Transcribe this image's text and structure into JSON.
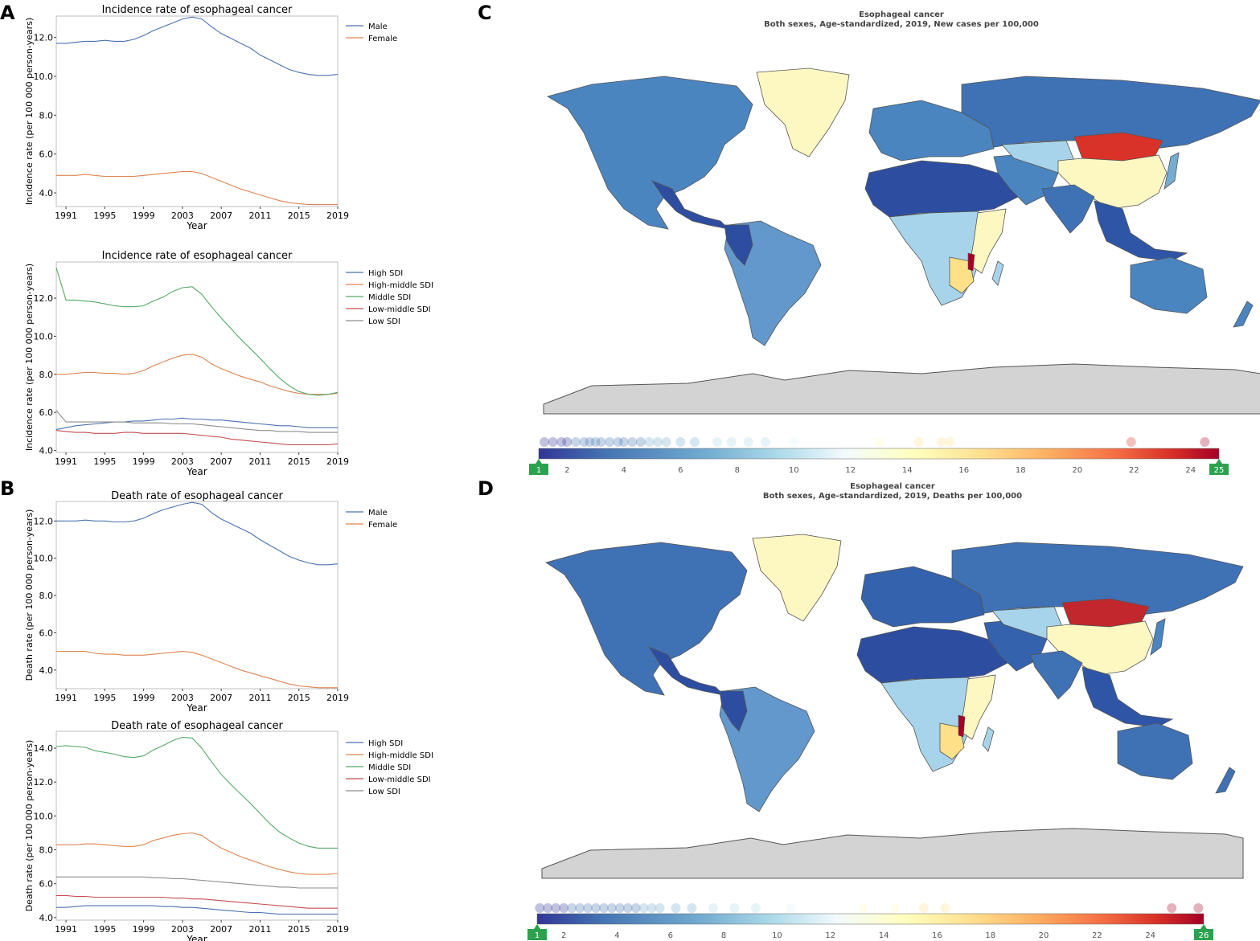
{
  "panels": {
    "A": "A",
    "B": "B",
    "C": "C",
    "D": "D"
  },
  "chart_data": [
    {
      "id": "A1",
      "type": "line",
      "title": "Incidence rate of esophageal cancer",
      "xlabel": "Year",
      "ylabel": "Incidence rate (per 100 000 person-years)",
      "xticks": [
        "1991",
        "1995",
        "1999",
        "2003",
        "2007",
        "2011",
        "2015",
        "2019"
      ],
      "yticks": [
        4.0,
        6.0,
        8.0,
        10.0,
        12.0
      ],
      "xlim": [
        1990,
        2019
      ],
      "ylim": [
        3.3,
        13.1
      ],
      "x": [
        1990,
        1991,
        1992,
        1993,
        1994,
        1995,
        1996,
        1997,
        1998,
        1999,
        2000,
        2001,
        2002,
        2003,
        2004,
        2005,
        2006,
        2007,
        2008,
        2009,
        2010,
        2011,
        2012,
        2013,
        2014,
        2015,
        2016,
        2017,
        2018,
        2019
      ],
      "series": [
        {
          "name": "Male",
          "color": "#4c72b0",
          "values": [
            11.7,
            11.7,
            11.75,
            11.8,
            11.8,
            11.85,
            11.8,
            11.8,
            11.9,
            12.1,
            12.35,
            12.55,
            12.75,
            12.95,
            13.05,
            12.95,
            12.55,
            12.2,
            11.95,
            11.7,
            11.45,
            11.1,
            10.85,
            10.6,
            10.35,
            10.2,
            10.1,
            10.05,
            10.05,
            10.1
          ]
        },
        {
          "name": "Female",
          "color": "#dd8452",
          "values": [
            4.9,
            4.9,
            4.9,
            4.95,
            4.9,
            4.85,
            4.85,
            4.85,
            4.85,
            4.9,
            4.95,
            5.0,
            5.05,
            5.1,
            5.1,
            5.0,
            4.8,
            4.6,
            4.4,
            4.2,
            4.05,
            3.9,
            3.75,
            3.6,
            3.5,
            3.45,
            3.4,
            3.4,
            3.4,
            3.4
          ]
        }
      ]
    },
    {
      "id": "A2",
      "type": "line",
      "title": "Incidence rate of esophageal cancer",
      "xlabel": "Year",
      "ylabel": "Incidence rate (per 100 000 person-years)",
      "xticks": [
        "1991",
        "1995",
        "1999",
        "2003",
        "2007",
        "2011",
        "2015",
        "2019"
      ],
      "yticks": [
        4.0,
        6.0,
        8.0,
        10.0,
        12.0
      ],
      "xlim": [
        1990,
        2019
      ],
      "ylim": [
        3.9,
        13.9
      ],
      "x": [
        1990,
        1991,
        1992,
        1993,
        1994,
        1995,
        1996,
        1997,
        1998,
        1999,
        2000,
        2001,
        2002,
        2003,
        2004,
        2005,
        2006,
        2007,
        2008,
        2009,
        2010,
        2011,
        2012,
        2013,
        2014,
        2015,
        2016,
        2017,
        2018,
        2019
      ],
      "series": [
        {
          "name": "High SDI",
          "color": "#4c72b0",
          "values": [
            5.1,
            5.2,
            5.3,
            5.35,
            5.4,
            5.45,
            5.5,
            5.5,
            5.55,
            5.55,
            5.6,
            5.65,
            5.65,
            5.7,
            5.65,
            5.65,
            5.6,
            5.6,
            5.55,
            5.5,
            5.45,
            5.4,
            5.35,
            5.3,
            5.3,
            5.25,
            5.2,
            5.2,
            5.2,
            5.2
          ]
        },
        {
          "name": "High-middle SDI",
          "color": "#dd8452",
          "values": [
            8.0,
            8.0,
            8.05,
            8.1,
            8.1,
            8.05,
            8.05,
            8.0,
            8.05,
            8.2,
            8.45,
            8.65,
            8.85,
            9.0,
            9.05,
            8.9,
            8.55,
            8.3,
            8.1,
            7.9,
            7.75,
            7.6,
            7.4,
            7.25,
            7.1,
            7.0,
            6.95,
            6.95,
            6.95,
            7.0
          ]
        },
        {
          "name": "Middle SDI",
          "color": "#55a868",
          "values": [
            13.6,
            11.9,
            11.9,
            11.85,
            11.8,
            11.7,
            11.6,
            11.55,
            11.55,
            11.6,
            11.85,
            12.05,
            12.35,
            12.55,
            12.6,
            12.2,
            11.55,
            10.95,
            10.4,
            9.85,
            9.35,
            8.85,
            8.3,
            7.8,
            7.4,
            7.1,
            6.95,
            6.9,
            6.95,
            7.05
          ]
        },
        {
          "name": "Low-middle SDI",
          "color": "#c44e52",
          "values": [
            5.05,
            5.0,
            4.95,
            4.95,
            4.9,
            4.9,
            4.9,
            4.95,
            4.95,
            4.9,
            4.9,
            4.9,
            4.9,
            4.9,
            4.85,
            4.8,
            4.75,
            4.7,
            4.6,
            4.55,
            4.5,
            4.45,
            4.4,
            4.35,
            4.3,
            4.3,
            4.3,
            4.3,
            4.3,
            4.35
          ]
        },
        {
          "name": "Low SDI",
          "color": "#8c8c8c",
          "values": [
            6.1,
            5.5,
            5.5,
            5.5,
            5.5,
            5.5,
            5.5,
            5.5,
            5.45,
            5.45,
            5.45,
            5.45,
            5.4,
            5.4,
            5.4,
            5.35,
            5.3,
            5.25,
            5.2,
            5.15,
            5.1,
            5.05,
            5.05,
            5.0,
            5.0,
            5.0,
            4.95,
            4.95,
            4.95,
            4.95
          ]
        }
      ]
    },
    {
      "id": "B1",
      "type": "line",
      "title": "Death rate of esophageal cancer",
      "xlabel": "Year",
      "ylabel": "Death rate (per 100 000 person-years)",
      "xticks": [
        "1991",
        "1995",
        "1999",
        "2003",
        "2007",
        "2011",
        "2015",
        "2019"
      ],
      "yticks": [
        4.0,
        6.0,
        8.0,
        10.0,
        12.0
      ],
      "xlim": [
        1990,
        2019
      ],
      "ylim": [
        3.0,
        13.05
      ],
      "x": [
        1990,
        1991,
        1992,
        1993,
        1994,
        1995,
        1996,
        1997,
        1998,
        1999,
        2000,
        2001,
        2002,
        2003,
        2004,
        2005,
        2006,
        2007,
        2008,
        2009,
        2010,
        2011,
        2012,
        2013,
        2014,
        2015,
        2016,
        2017,
        2018,
        2019
      ],
      "series": [
        {
          "name": "Male",
          "color": "#4c72b0",
          "values": [
            12.0,
            12.0,
            12.0,
            12.05,
            12.0,
            12.0,
            11.95,
            11.95,
            12.0,
            12.15,
            12.4,
            12.6,
            12.75,
            12.9,
            13.0,
            12.9,
            12.45,
            12.1,
            11.85,
            11.6,
            11.35,
            11.0,
            10.7,
            10.4,
            10.1,
            9.9,
            9.75,
            9.65,
            9.65,
            9.7
          ]
        },
        {
          "name": "Female",
          "color": "#dd8452",
          "values": [
            5.0,
            5.0,
            5.0,
            5.0,
            4.9,
            4.85,
            4.85,
            4.8,
            4.8,
            4.8,
            4.85,
            4.9,
            4.95,
            5.0,
            4.95,
            4.8,
            4.6,
            4.4,
            4.2,
            4.0,
            3.85,
            3.7,
            3.55,
            3.4,
            3.25,
            3.15,
            3.1,
            3.05,
            3.05,
            3.05
          ]
        }
      ]
    },
    {
      "id": "B2",
      "type": "line",
      "title": "Death rate of esophageal cancer",
      "xlabel": "Year",
      "ylabel": "Death rate (per 100 000 person-years)",
      "xticks": [
        "1991",
        "1995",
        "1999",
        "2003",
        "2007",
        "2011",
        "2015",
        "2019"
      ],
      "yticks": [
        4.0,
        6.0,
        8.0,
        10.0,
        12.0,
        14.0
      ],
      "xlim": [
        1990,
        2019
      ],
      "ylim": [
        3.85,
        15.0
      ],
      "x": [
        1990,
        1991,
        1992,
        1993,
        1994,
        1995,
        1996,
        1997,
        1998,
        1999,
        2000,
        2001,
        2002,
        2003,
        2004,
        2005,
        2006,
        2007,
        2008,
        2009,
        2010,
        2011,
        2012,
        2013,
        2014,
        2015,
        2016,
        2017,
        2018,
        2019
      ],
      "series": [
        {
          "name": "High SDI",
          "color": "#4c72b0",
          "values": [
            4.6,
            4.6,
            4.65,
            4.7,
            4.7,
            4.7,
            4.7,
            4.7,
            4.7,
            4.7,
            4.7,
            4.65,
            4.65,
            4.6,
            4.6,
            4.55,
            4.5,
            4.45,
            4.4,
            4.35,
            4.3,
            4.3,
            4.25,
            4.2,
            4.2,
            4.2,
            4.2,
            4.2,
            4.2,
            4.2
          ]
        },
        {
          "name": "High-middle SDI",
          "color": "#dd8452",
          "values": [
            8.3,
            8.3,
            8.3,
            8.35,
            8.35,
            8.3,
            8.25,
            8.2,
            8.2,
            8.3,
            8.55,
            8.7,
            8.85,
            8.95,
            9.0,
            8.85,
            8.45,
            8.1,
            7.85,
            7.6,
            7.4,
            7.2,
            7.0,
            6.85,
            6.7,
            6.6,
            6.55,
            6.55,
            6.55,
            6.6
          ]
        },
        {
          "name": "Middle SDI",
          "color": "#55a868",
          "values": [
            14.1,
            14.15,
            14.1,
            14.05,
            13.85,
            13.75,
            13.65,
            13.5,
            13.45,
            13.55,
            13.9,
            14.15,
            14.45,
            14.65,
            14.6,
            14.0,
            13.2,
            12.45,
            11.85,
            11.3,
            10.75,
            10.15,
            9.55,
            9.05,
            8.7,
            8.4,
            8.2,
            8.1,
            8.1,
            8.1
          ]
        },
        {
          "name": "Low-middle SDI",
          "color": "#c44e52",
          "values": [
            5.3,
            5.3,
            5.25,
            5.25,
            5.2,
            5.2,
            5.2,
            5.2,
            5.2,
            5.2,
            5.2,
            5.2,
            5.15,
            5.15,
            5.1,
            5.1,
            5.05,
            5.0,
            4.95,
            4.9,
            4.85,
            4.8,
            4.75,
            4.7,
            4.65,
            4.6,
            4.55,
            4.55,
            4.55,
            4.55
          ]
        },
        {
          "name": "Low SDI",
          "color": "#8c8c8c",
          "values": [
            6.4,
            6.4,
            6.4,
            6.4,
            6.4,
            6.4,
            6.4,
            6.4,
            6.4,
            6.4,
            6.35,
            6.35,
            6.3,
            6.3,
            6.25,
            6.2,
            6.15,
            6.1,
            6.05,
            6.0,
            5.95,
            5.9,
            5.85,
            5.8,
            5.8,
            5.75,
            5.75,
            5.75,
            5.75,
            5.75
          ]
        }
      ]
    },
    {
      "id": "C",
      "type": "heatmap",
      "title": "Esophageal cancer",
      "subtitle": "Both sexes, Age-standardized, 2019, New cases per 100,000",
      "scale_ticks": [
        "2",
        "4",
        "6",
        "8",
        "10",
        "12",
        "14",
        "16",
        "18",
        "20",
        "22",
        "24"
      ],
      "scale_min": 1,
      "scale_max": 25,
      "handle_min_label": "1",
      "handle_max_label": "25",
      "dot_values": [
        1.2,
        1.5,
        1.8,
        2.0,
        2.3,
        2.6,
        2.8,
        3.0,
        3.2,
        3.5,
        3.8,
        4.0,
        4.3,
        4.6,
        4.9,
        5.2,
        5.5,
        6.0,
        6.5,
        7.3,
        7.8,
        8.4,
        9.0,
        10.0,
        13.0,
        14.4,
        15.2,
        15.5,
        21.9,
        24.5
      ]
    },
    {
      "id": "D",
      "type": "heatmap",
      "title": "Esophageal cancer",
      "subtitle": "Both sexes, Age-standardized, 2019, Deaths per 100,000",
      "scale_ticks": [
        "2",
        "4",
        "6",
        "8",
        "10",
        "12",
        "14",
        "16",
        "18",
        "20",
        "22",
        "24"
      ],
      "scale_min": 1,
      "scale_max": 26,
      "handle_min_label": "1",
      "handle_max_label": "26",
      "dot_values": [
        1.1,
        1.4,
        1.7,
        2.0,
        2.3,
        2.6,
        2.9,
        3.2,
        3.5,
        3.8,
        4.1,
        4.4,
        4.7,
        5.0,
        5.3,
        5.6,
        6.2,
        6.8,
        7.6,
        8.4,
        9.2,
        10.5,
        13.2,
        14.4,
        15.5,
        16.3,
        24.8,
        25.8
      ]
    }
  ],
  "colors": {
    "scale": [
      "#313695",
      "#4575b4",
      "#74add1",
      "#abd9e9",
      "#e0f3f8",
      "#ffffbf",
      "#fee090",
      "#fdae61",
      "#f46d43",
      "#d73027",
      "#a50026"
    ],
    "land_gray": "#d3d3d3",
    "handle": "#2ca24f"
  }
}
